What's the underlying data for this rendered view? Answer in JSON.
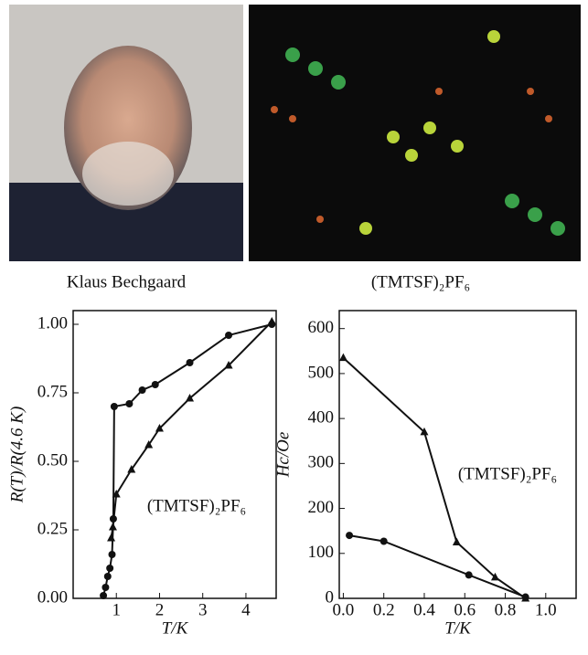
{
  "captions": [
    "Klaus Bechgaard",
    "(TMTSF)₂PF₆"
  ],
  "chart_data": [
    {
      "type": "line",
      "xlabel": "T/K",
      "ylabel": "R(T)/R(4.6 K)",
      "annotation": "(TMTSF)₂PF₆",
      "xlim": [
        0,
        4.7
      ],
      "xticks": [
        1,
        2,
        3,
        4
      ],
      "ylim": [
        0,
        1.05
      ],
      "yticks": [
        {
          "value": 0,
          "label": "0.00"
        },
        {
          "value": 0.25,
          "label": "0.25"
        },
        {
          "value": 0.5,
          "label": "0.50"
        },
        {
          "value": 0.75,
          "label": "0.75"
        },
        {
          "value": 1,
          "label": "1.00"
        }
      ],
      "series": [
        {
          "color": "#111111",
          "marker": "circle",
          "x": [
            0.7,
            0.75,
            0.8,
            0.85,
            0.9,
            0.93,
            0.95,
            1.3,
            1.6,
            1.9,
            2.7,
            3.6,
            4.6
          ],
          "values": [
            0.01,
            0.04,
            0.08,
            0.11,
            0.16,
            0.29,
            0.7,
            0.71,
            0.76,
            0.78,
            0.86,
            0.96,
            1.0
          ]
        },
        {
          "color": "#111111",
          "marker": "triangle",
          "x": [
            0.88,
            0.92,
            1.0,
            1.35,
            1.75,
            2.0,
            2.7,
            3.6,
            4.6
          ],
          "values": [
            0.22,
            0.26,
            0.38,
            0.47,
            0.56,
            0.62,
            0.73,
            0.85,
            1.01
          ]
        }
      ]
    },
    {
      "type": "line",
      "xlabel": "T/K",
      "ylabel": "Hc/Oe",
      "annotation": "(TMTSF)₂PF₆",
      "xlim": [
        -0.02,
        1.15
      ],
      "xticks": [
        {
          "value": 0,
          "label": "0.0"
        },
        {
          "value": 0.2,
          "label": "0.2"
        },
        {
          "value": 0.4,
          "label": "0.4"
        },
        {
          "value": 0.6,
          "label": "0.6"
        },
        {
          "value": 0.8,
          "label": "0.8"
        },
        {
          "value": 1,
          "label": "1.0"
        }
      ],
      "ylim": [
        0,
        640
      ],
      "yticks": [
        0,
        100,
        200,
        300,
        400,
        500,
        600
      ],
      "series": [
        {
          "color": "#111111",
          "marker": "triangle",
          "x": [
            0,
            0.4,
            0.56,
            0.75,
            0.9
          ],
          "values": [
            535,
            370,
            125,
            47,
            0
          ]
        },
        {
          "color": "#111111",
          "marker": "circle",
          "x": [
            0.03,
            0.2,
            0.62,
            0.9
          ],
          "values": [
            140,
            127,
            52,
            3
          ]
        }
      ]
    }
  ]
}
